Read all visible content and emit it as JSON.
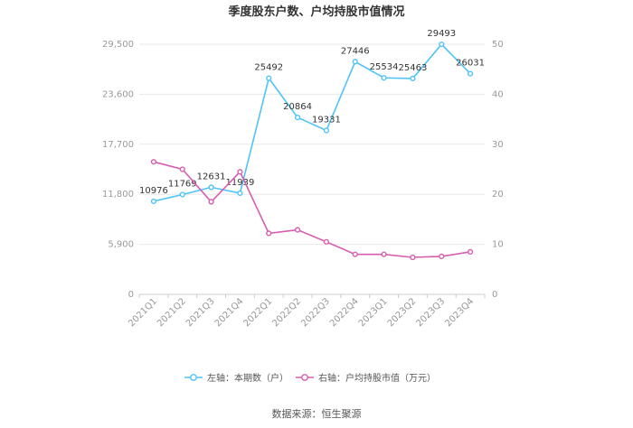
{
  "chart_data": {
    "type": "line",
    "title": "季度股东户数、户均持股市值情况",
    "categories": [
      "2021Q1",
      "2021Q2",
      "2021Q3",
      "2021Q4",
      "2022Q1",
      "2022Q2",
      "2022Q3",
      "2022Q4",
      "2023Q1",
      "2023Q2",
      "2023Q3",
      "2023Q4"
    ],
    "left_axis": {
      "ticks": [
        "0",
        "5,900",
        "11,800",
        "17,700",
        "23,600",
        "29,500"
      ],
      "ylim": [
        0,
        29500
      ]
    },
    "right_axis": {
      "ticks": [
        "0",
        "10",
        "20",
        "30",
        "40",
        "50"
      ],
      "ylim": [
        0,
        50
      ]
    },
    "series": [
      {
        "name": "左轴：本期数（户）",
        "axis": "left",
        "color": "#4fc3f7",
        "values": [
          10976,
          11769,
          12631,
          11939,
          25492,
          20864,
          19331,
          27446,
          25534,
          25463,
          29493,
          26031
        ],
        "labels": [
          "10976",
          "11769",
          "12631",
          "11939",
          "25492",
          "20864",
          "19331",
          "27446",
          "25534",
          "25463",
          "29493",
          "26031"
        ]
      },
      {
        "name": "右轴：户均持股市值（万元）",
        "axis": "right",
        "color": "#d65db1",
        "values": [
          26.5,
          25.0,
          18.5,
          24.5,
          12.2,
          12.9,
          10.5,
          8.0,
          8.0,
          7.4,
          7.6,
          8.5
        ]
      }
    ],
    "grid": true,
    "legend_position": "bottom"
  },
  "source_text": "数据来源：恒生聚源"
}
